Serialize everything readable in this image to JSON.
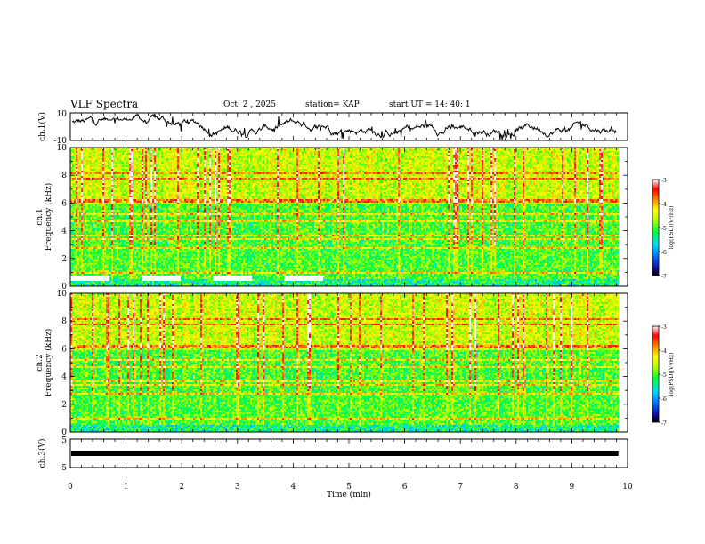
{
  "header": {
    "title": "VLF Spectra",
    "date": "Oct. 2 , 2025",
    "station": "station= KAP",
    "start": "start UT = 14: 40: 1"
  },
  "chart_data": [
    {
      "type": "line",
      "name": "ch1-waveform",
      "ylabel": "ch.1(V)",
      "ylim": [
        -10,
        10
      ],
      "tick_labels": [
        "10",
        "-10"
      ],
      "xlim": [
        0,
        10
      ],
      "trace_end_min": 9.8
    },
    {
      "type": "heatmap",
      "name": "ch1-spectrogram",
      "ylabel": "ch.1\nFrequency (kHz)",
      "ylabel_lines": [
        "ch.1",
        "Frequency (kHz)"
      ],
      "ylim": [
        0,
        10
      ],
      "y_ticks": [
        "0",
        "2",
        "4",
        "6",
        "8",
        "10"
      ],
      "xlim": [
        0,
        10
      ],
      "colorbar": {
        "label": "log(PSD)(V²/Hz)",
        "range": [
          -7,
          -3
        ],
        "ticks": [
          "-3",
          "-4",
          "-5",
          "-6",
          "-7"
        ]
      }
    },
    {
      "type": "heatmap",
      "name": "ch2-spectrogram",
      "ylabel_lines": [
        "ch.2",
        "Frequency (kHz)"
      ],
      "ylim": [
        0,
        10
      ],
      "y_ticks": [
        "0",
        "2",
        "4",
        "6",
        "8",
        "10"
      ],
      "xlim": [
        0,
        10
      ],
      "colorbar": {
        "label": "log(PSD)(V²/Hz)",
        "range": [
          -7,
          -3
        ],
        "ticks": [
          "-3",
          "-4",
          "-5",
          "-6",
          "-7"
        ]
      }
    },
    {
      "type": "line",
      "name": "ch3-waveform",
      "ylabel": "ch.3(V)",
      "ylim": [
        -5,
        5
      ],
      "tick_labels": [
        "5",
        "-5"
      ],
      "level": 0,
      "xlim": [
        0,
        10
      ]
    }
  ],
  "xaxis": {
    "label": "Time (min)",
    "ticks": [
      "0",
      "1",
      "2",
      "3",
      "4",
      "5",
      "6",
      "7",
      "8",
      "9",
      "10"
    ],
    "range": [
      0,
      10
    ]
  },
  "colors": {
    "trace": "#000000",
    "frame": "#000000"
  }
}
